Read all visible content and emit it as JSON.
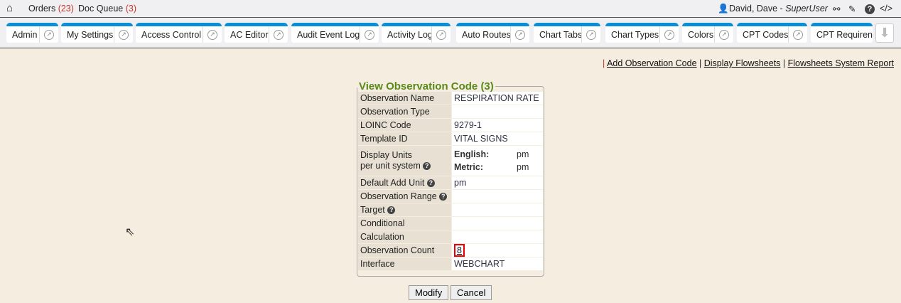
{
  "topbar": {
    "orders_label": "Orders",
    "orders_count": "(23)",
    "docqueue_label": "Doc Queue",
    "docqueue_count": "(3)",
    "user_name": "David, Dave - ",
    "user_role": "SuperUser"
  },
  "tabs": [
    {
      "label": "Admin"
    },
    {
      "label": "My Settings"
    },
    {
      "label": "Access Control"
    },
    {
      "label": "AC Editor"
    },
    {
      "label": "Audit Event Log"
    },
    {
      "label": "Activity Log"
    },
    {
      "label": "Auto Routes"
    },
    {
      "label": "Chart Tabs"
    },
    {
      "label": "Chart Types"
    },
    {
      "label": "Colors"
    },
    {
      "label": "CPT Codes"
    },
    {
      "label": "CPT Requiren"
    }
  ],
  "links": {
    "add": "Add Observation Code",
    "display": "Display Flowsheets",
    "report": "Flowsheets System Report"
  },
  "form": {
    "title": "View Observation Code (3)",
    "rows": [
      {
        "label": "Observation Name",
        "value": "RESPIRATION RATE"
      },
      {
        "label": "Observation Type",
        "value": ""
      },
      {
        "label": "LOINC Code",
        "value": "9279-1"
      },
      {
        "label": "Template ID",
        "value": "VITAL SIGNS"
      },
      {
        "label1": "Display Units",
        "label2": "per unit system",
        "english_label": "English:",
        "english_value": "pm",
        "metric_label": "Metric:",
        "metric_value": "pm"
      },
      {
        "label": "Default Add Unit",
        "value": "pm"
      },
      {
        "label": "Observation Range",
        "value": ""
      },
      {
        "label": "Target",
        "value": ""
      },
      {
        "label": "Conditional",
        "value": ""
      },
      {
        "label": "Calculation",
        "value": ""
      },
      {
        "label": "Observation Count",
        "value": "8"
      },
      {
        "label": "Interface",
        "value": "WEBCHART"
      }
    ]
  },
  "buttons": {
    "modify": "Modify",
    "cancel": "Cancel"
  }
}
